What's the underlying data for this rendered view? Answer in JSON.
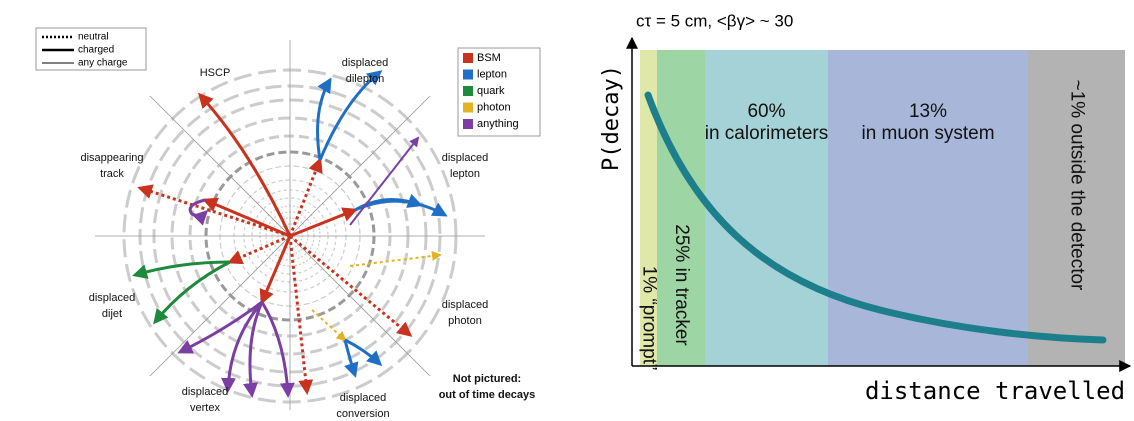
{
  "left": {
    "line_legend": [
      "neutral",
      "charged",
      "any charge"
    ],
    "color_legend": [
      {
        "label": "BSM",
        "color": "#c8321e"
      },
      {
        "label": "lepton",
        "color": "#1f6fc4"
      },
      {
        "label": "quark",
        "color": "#1e8a3c"
      },
      {
        "label": "photon",
        "color": "#e2b424"
      },
      {
        "label": "anything",
        "color": "#7b3fa3"
      }
    ],
    "labels": [
      [
        "HSCP"
      ],
      [
        "displaced",
        "dilepton"
      ],
      [
        "displaced",
        "lepton"
      ],
      [
        "disappearing",
        "track"
      ],
      [
        "displaced",
        "dijet"
      ],
      [
        "displaced",
        "photon"
      ],
      [
        "displaced",
        "vertex"
      ],
      [
        "displaced",
        "conversion"
      ]
    ],
    "note": [
      "Not pictured:",
      "out of time decays"
    ]
  },
  "right": {
    "title": "cτ = 5 cm, <βγ> ~ 30",
    "y_label": "P(decay)",
    "x_label": "distance travelled",
    "regions": [
      {
        "lines": [
          "1% “prompt”"
        ],
        "color": "#dfe8a8"
      },
      {
        "lines": [
          "25% in tracker"
        ],
        "color": "#9ed5a4"
      },
      {
        "lines": [
          "60%",
          "in calorimeters"
        ],
        "color": "#a5d2d6"
      },
      {
        "lines": [
          "13%",
          "in muon system"
        ],
        "color": "#a7b6d9"
      },
      {
        "lines": [
          "~1% outside the detector"
        ],
        "color": "#b3b3b3"
      }
    ]
  }
}
